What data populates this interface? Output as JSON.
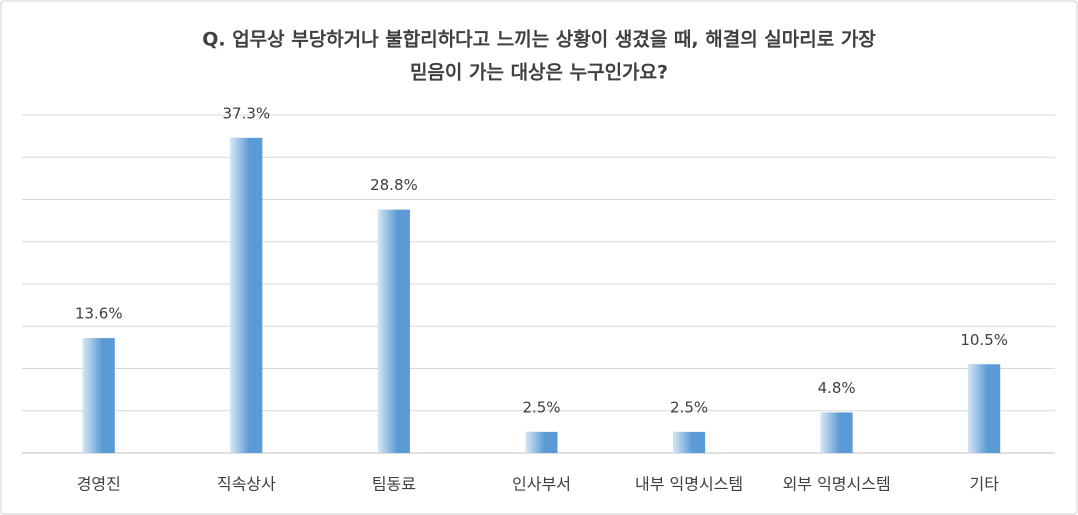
{
  "chart_data": {
    "type": "bar",
    "title": [
      "Q. 업무상 부당하거나 불합리하다고 느끼는 상황이 생겼을 때, 해결의 실마리로 가장",
      "믿음이 가는 대상은 누구인가요?"
    ],
    "categories": [
      "경영진",
      "직속상사",
      "팀동료",
      "인사부서",
      "내부 익명시스템",
      "외부 익명시스템",
      "기타"
    ],
    "values": [
      13.6,
      37.3,
      28.8,
      2.5,
      2.5,
      4.8,
      10.5
    ],
    "value_labels": [
      "13.6%",
      "37.3%",
      "28.8%",
      "2.5%",
      "2.5%",
      "4.8%",
      "10.5%"
    ],
    "color": "#5b9bd5",
    "ylim": [
      0,
      40
    ],
    "yticks": [
      0,
      5,
      10,
      15,
      20,
      25,
      30,
      35,
      40
    ],
    "grid": true
  }
}
